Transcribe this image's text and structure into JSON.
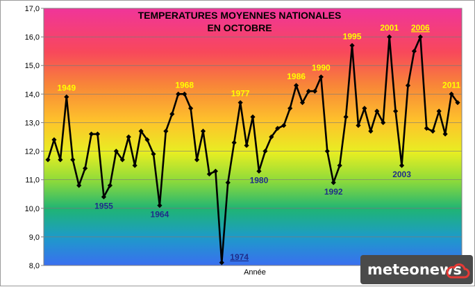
{
  "chart_data": {
    "type": "line",
    "title_lines": [
      "TEMPERATURES MOYENNES NATIONALES",
      "EN OCTOBRE"
    ],
    "xlabel": "Année",
    "ylabel": "",
    "ylim": [
      8,
      17
    ],
    "yticks": [
      "8,0",
      "9,0",
      "10,0",
      "11,0",
      "12,0",
      "13,0",
      "14,0",
      "15,0",
      "16,0",
      "17,0"
    ],
    "x_start_year": 1946,
    "grid": "horizontal",
    "background": "vertical rainbow gradient (magenta top to blue bottom)",
    "series": [
      {
        "color": "#000000",
        "marker": "diamond",
        "values": [
          11.7,
          12.4,
          11.7,
          13.9,
          11.7,
          10.8,
          11.4,
          12.6,
          12.6,
          10.4,
          10.8,
          12.0,
          11.7,
          12.5,
          11.5,
          12.7,
          12.4,
          11.9,
          10.1,
          12.7,
          13.3,
          14.0,
          14.0,
          13.5,
          11.7,
          12.7,
          11.2,
          11.3,
          8.1,
          10.9,
          12.3,
          13.7,
          12.2,
          13.2,
          11.3,
          12.0,
          12.5,
          12.8,
          12.9,
          13.5,
          14.3,
          13.7,
          14.1,
          14.1,
          14.6,
          12.0,
          10.9,
          11.5,
          13.2,
          15.7,
          12.9,
          13.5,
          12.7,
          13.4,
          13.0,
          16.0,
          13.4,
          11.5,
          14.3,
          15.5,
          16.0,
          12.8,
          12.7,
          13.4,
          12.6,
          14.0,
          13.7
        ]
      }
    ],
    "annotations": [
      {
        "text": "1949",
        "year": 1949,
        "color": "#ffff00",
        "position": "above"
      },
      {
        "text": "1955",
        "year": 1955,
        "color": "#1f2d8a",
        "position": "below"
      },
      {
        "text": "1964",
        "year": 1964,
        "color": "#1f2d8a",
        "position": "below"
      },
      {
        "text": "1968",
        "year": 1968,
        "color": "#ffff00",
        "position": "above"
      },
      {
        "text": "1974",
        "year": 1974,
        "color": "#1f2d8a",
        "position": "below-right",
        "underline": true
      },
      {
        "text": "1977",
        "year": 1977,
        "color": "#ffff00",
        "position": "above"
      },
      {
        "text": "1980",
        "year": 1980,
        "color": "#1f2d8a",
        "position": "below"
      },
      {
        "text": "1986",
        "year": 1986,
        "color": "#ffff00",
        "position": "above"
      },
      {
        "text": "1990",
        "year": 1990,
        "color": "#ffff00",
        "position": "above"
      },
      {
        "text": "1992",
        "year": 1992,
        "color": "#1f2d8a",
        "position": "below"
      },
      {
        "text": "1995",
        "year": 1995,
        "color": "#ffff00",
        "position": "above"
      },
      {
        "text": "2001",
        "year": 2001,
        "color": "#ffff00",
        "position": "above"
      },
      {
        "text": "2003",
        "year": 2003,
        "color": "#1f2d8a",
        "position": "below"
      },
      {
        "text": "2006",
        "year": 2006,
        "color": "#ffff00",
        "position": "above",
        "underline": true
      },
      {
        "text": "2011",
        "year": 2011,
        "color": "#ffff00",
        "position": "above"
      }
    ]
  },
  "logo": {
    "text": "meteonews",
    "icon": "cloud-icon",
    "background": "#4a4a4a",
    "accent": "#e53935"
  }
}
